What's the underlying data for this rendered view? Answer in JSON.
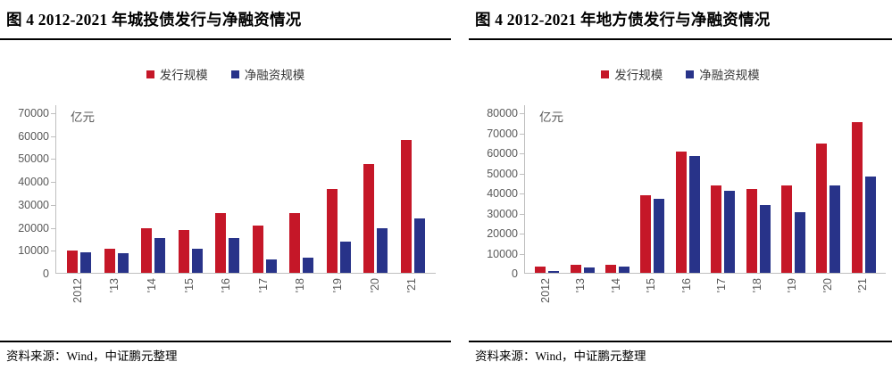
{
  "charts": [
    {
      "title": "图 4  2012-2021 年城投债发行与净融资情况",
      "unit_label": "亿元",
      "source": "资料来源：Wind，中证鹏元整理",
      "legend": [
        {
          "label": "发行规模",
          "color": "#C51728"
        },
        {
          "label": "净融资规模",
          "color": "#283389"
        }
      ],
      "chart_data": {
        "type": "bar",
        "title": "2012-2021 年城投债发行与净融资情况",
        "categories": [
          "2012",
          "'13",
          "'14",
          "'15",
          "'16",
          "'17",
          "'18",
          "'19",
          "'20",
          "'21"
        ],
        "series": [
          {
            "name": "发行规模",
            "color": "#C51728",
            "values": [
              9600,
              10700,
              19400,
              18700,
              26100,
              20500,
              25900,
              36700,
              47500,
              58100
            ]
          },
          {
            "name": "净融资规模",
            "color": "#283389",
            "values": [
              8900,
              8700,
              15300,
              10700,
              15000,
              5900,
              6500,
              13500,
              19500,
              23700
            ]
          }
        ],
        "xlabel": "",
        "ylabel": "亿元",
        "ylim": [
          0,
          70000
        ],
        "ytick_step": 10000,
        "grid": false,
        "legend_position": "top"
      }
    },
    {
      "title": "图 4  2012-2021 年地方债发行与净融资情况",
      "unit_label": "亿元",
      "source": "资料来源：Wind，中证鹏元整理",
      "legend": [
        {
          "label": "发行规模",
          "color": "#C51728"
        },
        {
          "label": "净融资规模",
          "color": "#283389"
        }
      ],
      "chart_data": {
        "type": "bar",
        "title": "2012-2021 年地方债发行与净融资情况",
        "categories": [
          "2012",
          "'13",
          "'14",
          "'15",
          "'16",
          "'17",
          "'18",
          "'19",
          "'20",
          "'21"
        ],
        "series": [
          {
            "name": "发行规模",
            "color": "#C51728",
            "values": [
              3000,
              3800,
              4100,
              38500,
              60400,
              43700,
              41900,
              43500,
              64500,
              75100
            ]
          },
          {
            "name": "净融资规模",
            "color": "#283389",
            "values": [
              800,
              2500,
              3200,
              36700,
              58100,
              41100,
              33600,
              30400,
              43700,
              48100
            ]
          }
        ],
        "xlabel": "",
        "ylabel": "亿元",
        "ylim": [
          0,
          80000
        ],
        "ytick_step": 10000,
        "grid": false,
        "legend_position": "top"
      }
    }
  ]
}
